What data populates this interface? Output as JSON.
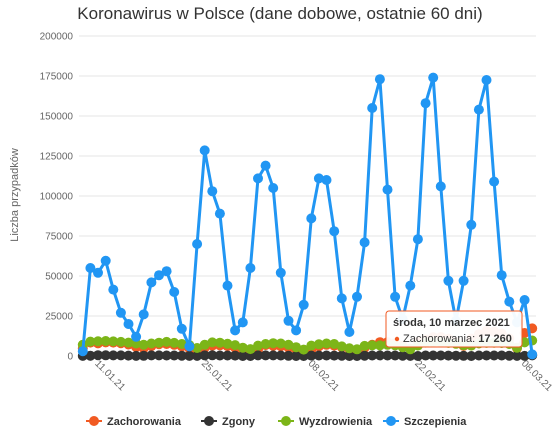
{
  "chart_data": {
    "type": "line",
    "title": "Koronawirus w Polsce (dane dobowe, ostatnie 60 dni)",
    "ylabel": "Liczba przypadków",
    "ylim": [
      0,
      200000
    ],
    "y_ticks": [
      "0",
      "25000",
      "50000",
      "75000",
      "100000",
      "125000",
      "150000",
      "175000",
      "200000"
    ],
    "x_ticks": [
      {
        "index": 1,
        "label": "11.01.21"
      },
      {
        "index": 15,
        "label": "25.01.21"
      },
      {
        "index": 29,
        "label": "08.02.21"
      },
      {
        "index": 43,
        "label": "22.02.21"
      },
      {
        "index": 57,
        "label": "08.03.21"
      }
    ],
    "grid": true,
    "legend_placement": "bottom",
    "series": [
      {
        "name": "Zachorowania",
        "color": "#f15a22",
        "values": [
          4900,
          8400,
          7900,
          8500,
          8400,
          8000,
          7200,
          5600,
          4800,
          6200,
          7400,
          7500,
          7000,
          6000,
          4700,
          3200,
          5100,
          6500,
          6700,
          6200,
          5100,
          3800,
          2500,
          4000,
          6800,
          6400,
          6100,
          5200,
          4100,
          2400,
          3900,
          6000,
          7000,
          6500,
          5500,
          4200,
          2900,
          5100,
          7000,
          8600,
          8700,
          8000,
          6400,
          4500,
          8900,
          10300,
          11800,
          11900,
          10900,
          8700,
          6300,
          10900,
          13600,
          15700,
          15200,
          14000,
          11000,
          4800,
          14400,
          17260
        ]
      },
      {
        "name": "Zgony",
        "color": "#333333",
        "values": [
          50,
          180,
          510,
          410,
          400,
          380,
          240,
          70,
          110,
          380,
          390,
          320,
          300,
          180,
          40,
          50,
          380,
          450,
          320,
          300,
          220,
          20,
          30,
          370,
          380,
          350,
          300,
          150,
          10,
          20,
          280,
          320,
          290,
          270,
          180,
          30,
          20,
          180,
          300,
          350,
          330,
          300,
          200,
          80,
          30,
          300,
          330,
          310,
          280,
          200,
          100,
          20,
          300,
          320,
          300,
          290,
          200,
          70,
          60,
          400
        ]
      },
      {
        "name": "Wyzdrowienia",
        "color": "#7cb518",
        "values": [
          7000,
          9000,
          9200,
          9400,
          9100,
          8800,
          8400,
          7800,
          7000,
          7800,
          8300,
          8800,
          8200,
          7500,
          6800,
          5000,
          7000,
          8500,
          8300,
          7600,
          6800,
          5200,
          4300,
          6500,
          7500,
          8000,
          7800,
          7000,
          5500,
          4000,
          6500,
          7300,
          7800,
          7500,
          6000,
          4800,
          4200,
          6300,
          6700,
          6600,
          7000,
          6700,
          5500,
          4200,
          6500,
          8400,
          8600,
          8500,
          8200,
          7600,
          6700,
          6500,
          7800,
          8200,
          8300,
          8100,
          7500,
          5200,
          8500,
          9700
        ]
      },
      {
        "name": "Szczepienia",
        "color": "#2196f3",
        "values": [
          3000,
          55000,
          52000,
          59500,
          41500,
          27000,
          20000,
          12000,
          26000,
          46000,
          50500,
          53000,
          40000,
          17000,
          6000,
          70000,
          128500,
          103000,
          89000,
          44000,
          16000,
          21000,
          55000,
          111000,
          119000,
          105000,
          52000,
          22000,
          16000,
          32000,
          86000,
          111000,
          110000,
          78000,
          36000,
          15000,
          37000,
          71000,
          155000,
          173000,
          104000,
          37000,
          23000,
          44000,
          73000,
          158000,
          174000,
          106000,
          47000,
          22000,
          47000,
          82000,
          154000,
          172500,
          109000,
          50500,
          34000,
          21000,
          35000,
          1000
        ]
      }
    ]
  },
  "tooltip": {
    "date": "środa, 10 marzec 2021",
    "series": "Zachorowania",
    "value": "17 260",
    "color": "#f15a22"
  }
}
